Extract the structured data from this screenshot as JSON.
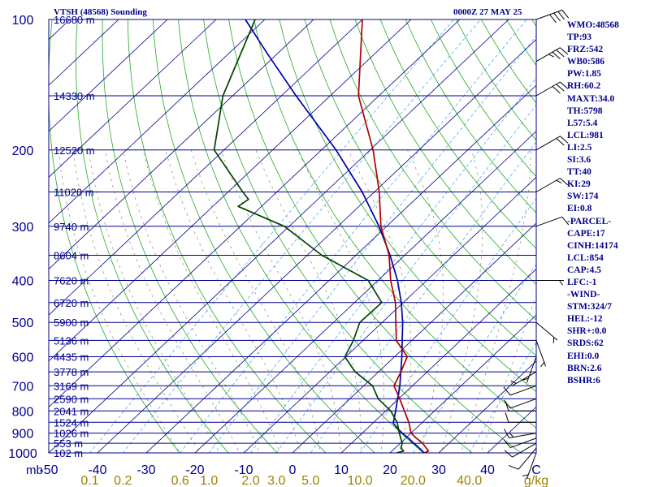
{
  "header": {
    "station": "VTSH (48568) Sounding",
    "valid_time": "0000Z 27 MAY 25"
  },
  "indices": [
    "WMO:48568",
    "TP:93",
    "FRZ:542",
    "WB0:586",
    "PW:1.85",
    "RH:60.2",
    "MAXT:34.0",
    "TH:5798",
    "L57:5.4",
    "LCL:981",
    "LI:2.5",
    "SI:3.6",
    "TT:40",
    "KI:29",
    "SW:174",
    "EI:0.8",
    "-PARCEL-",
    "CAPE:17",
    "CINH:14174",
    "LCL:854",
    "CAP:4.5",
    "LFC:-1",
    "-WIND-",
    "STM:324/7",
    "HEL:-12",
    "SHR+:0.0",
    "SRDS:62",
    "EHI:0.0",
    "BRN:2.6",
    "BSHR:6"
  ],
  "chart_data": {
    "type": "line",
    "subtype": "skew-T log-P sounding",
    "y_axis": {
      "unit_label": "mb",
      "scale": "log",
      "range": [
        1000,
        100
      ],
      "tick_labels": [
        "100",
        "200",
        "300",
        "400",
        "500",
        "600",
        "700",
        "800",
        "900",
        "1000"
      ]
    },
    "x_axis": {
      "range": [
        -50,
        50
      ],
      "tick_labels": [
        "-50",
        "-40",
        "-30",
        "-20",
        "-10",
        "0",
        "10",
        "20",
        "30",
        "40",
        "C"
      ]
    },
    "mixing_ratio_labels": {
      "unit": "g/kg",
      "values": [
        0.1,
        0.2,
        0.6,
        1.0,
        2.0,
        3.0,
        5.0,
        10.0,
        20.0,
        40.0
      ],
      "labels": [
        "0.1",
        "0.2",
        "0.6",
        "1.0",
        "2.0",
        "3.0",
        "5.0",
        "10.0",
        "20.0",
        "40.0"
      ]
    },
    "height_levels": [
      {
        "p": 100,
        "label": "16680 m"
      },
      {
        "p": 150,
        "label": "14330 m"
      },
      {
        "p": 200,
        "label": "12520 m"
      },
      {
        "p": 250,
        "label": "11020 m"
      },
      {
        "p": 300,
        "label": "9740 m"
      },
      {
        "p": 350,
        "label": "8604 m"
      },
      {
        "p": 400,
        "label": "7620 m"
      },
      {
        "p": 450,
        "label": "6720 m"
      },
      {
        "p": 500,
        "label": "5900 m"
      },
      {
        "p": 550,
        "label": "5136 m"
      },
      {
        "p": 600,
        "label": "4435 m"
      },
      {
        "p": 650,
        "label": "3778 m"
      },
      {
        "p": 700,
        "label": "3169 m"
      },
      {
        "p": 750,
        "label": "2590 m"
      },
      {
        "p": 800,
        "label": "2041 m"
      },
      {
        "p": 850,
        "label": "1524 m"
      },
      {
        "p": 900,
        "label": "1026 m"
      },
      {
        "p": 950,
        "label": "553 m"
      },
      {
        "p": 1000,
        "label": "102 m"
      }
    ],
    "temperature": [
      {
        "p": 1000,
        "t": 27.0
      },
      {
        "p": 990,
        "t": 27.5
      },
      {
        "p": 975,
        "t": 26.4
      },
      {
        "p": 950,
        "t": 24.6
      },
      {
        "p": 925,
        "t": 22.2
      },
      {
        "p": 900,
        "t": 20.0
      },
      {
        "p": 850,
        "t": 17.2
      },
      {
        "p": 800,
        "t": 13.8
      },
      {
        "p": 750,
        "t": 10.2
      },
      {
        "p": 700,
        "t": 6.2
      },
      {
        "p": 650,
        "t": 4.6
      },
      {
        "p": 600,
        "t": 2.6
      },
      {
        "p": 550,
        "t": -3.2
      },
      {
        "p": 500,
        "t": -7.2
      },
      {
        "p": 450,
        "t": -11.6
      },
      {
        "p": 400,
        "t": -17.4
      },
      {
        "p": 350,
        "t": -23.2
      },
      {
        "p": 300,
        "t": -31.2
      },
      {
        "p": 250,
        "t": -39.0
      },
      {
        "p": 200,
        "t": -49.4
      },
      {
        "p": 150,
        "t": -64.2
      },
      {
        "p": 100,
        "t": -80.0
      },
      {
        "p": 95,
        "t": -80.8
      }
    ],
    "dewpoint": [
      {
        "p": 1000,
        "t": 21.4
      },
      {
        "p": 990,
        "t": 22.4
      },
      {
        "p": 975,
        "t": 21.2
      },
      {
        "p": 950,
        "t": 20.4
      },
      {
        "p": 925,
        "t": 19.0
      },
      {
        "p": 900,
        "t": 17.6
      },
      {
        "p": 850,
        "t": 14.8
      },
      {
        "p": 800,
        "t": 11.0
      },
      {
        "p": 750,
        "t": 5.8
      },
      {
        "p": 700,
        "t": 1.8
      },
      {
        "p": 650,
        "t": -4.8
      },
      {
        "p": 600,
        "t": -10.2
      },
      {
        "p": 550,
        "t": -12.0
      },
      {
        "p": 500,
        "t": -14.6
      },
      {
        "p": 450,
        "t": -14.4
      },
      {
        "p": 400,
        "t": -22.0
      },
      {
        "p": 350,
        "t": -37.0
      },
      {
        "p": 300,
        "t": -51.0
      },
      {
        "p": 270,
        "t": -64.8
      },
      {
        "p": 260,
        "t": -64.2
      },
      {
        "p": 250,
        "t": -67.0
      },
      {
        "p": 200,
        "t": -82.0
      },
      {
        "p": 150,
        "t": -92.0
      },
      {
        "p": 100,
        "t": -102.0
      },
      {
        "p": 95,
        "t": -103.0
      }
    ],
    "parcel": [
      {
        "p": 1000,
        "t": 27.0
      },
      {
        "p": 975,
        "t": 25.0
      },
      {
        "p": 950,
        "t": 22.8
      },
      {
        "p": 925,
        "t": 20.6
      },
      {
        "p": 900,
        "t": 18.2
      },
      {
        "p": 880,
        "t": 16.4
      },
      {
        "p": 854,
        "t": 14.2
      },
      {
        "p": 800,
        "t": 12.0
      },
      {
        "p": 700,
        "t": 7.4
      },
      {
        "p": 600,
        "t": 1.5
      },
      {
        "p": 500,
        "t": -5.8
      },
      {
        "p": 450,
        "t": -10.4
      },
      {
        "p": 400,
        "t": -16.0
      },
      {
        "p": 350,
        "t": -23.0
      },
      {
        "p": 300,
        "t": -31.6
      },
      {
        "p": 250,
        "t": -42.5
      },
      {
        "p": 200,
        "t": -57.0
      },
      {
        "p": 150,
        "t": -77.0
      },
      {
        "p": 120,
        "t": -92.0
      },
      {
        "p": 100,
        "t": -104.0
      },
      {
        "p": 95,
        "t": -107.0
      }
    ],
    "wind_barbs": [
      {
        "p": 1000,
        "dir": 200,
        "spd": 5
      },
      {
        "p": 975,
        "dir": 220,
        "spd": 10
      },
      {
        "p": 950,
        "dir": 240,
        "spd": 10
      },
      {
        "p": 925,
        "dir": 250,
        "spd": 10
      },
      {
        "p": 900,
        "dir": 260,
        "spd": 15
      },
      {
        "p": 850,
        "dir": 270,
        "spd": 10
      },
      {
        "p": 800,
        "dir": 270,
        "spd": 10
      },
      {
        "p": 750,
        "dir": 250,
        "spd": 10
      },
      {
        "p": 700,
        "dir": 250,
        "spd": 10
      },
      {
        "p": 650,
        "dir": 240,
        "spd": 5
      },
      {
        "p": 600,
        "dir": 200,
        "spd": 5
      },
      {
        "p": 550,
        "dir": 160,
        "spd": 5
      },
      {
        "p": 500,
        "dir": 130,
        "spd": 5
      },
      {
        "p": 400,
        "dir": 90,
        "spd": 5
      },
      {
        "p": 300,
        "dir": 70,
        "spd": 10
      },
      {
        "p": 250,
        "dir": 60,
        "spd": 15
      },
      {
        "p": 200,
        "dir": 60,
        "spd": 20
      },
      {
        "p": 150,
        "dir": 60,
        "spd": 30
      },
      {
        "p": 125,
        "dir": 60,
        "spd": 35
      },
      {
        "p": 100,
        "dir": 70,
        "spd": 40
      }
    ],
    "colors": {
      "isobar": "#00008b",
      "isotherm": "#00008b",
      "dry_adiabat": "#22aa22",
      "moist_adiabat": "#9a9a7a",
      "mixing_ratio": "#55aaff",
      "temperature": "#b00000",
      "dewpoint": "#004400",
      "parcel": "#0000aa",
      "axis_text": "#00008b",
      "mixing_text": "#a08000",
      "barb": "#000000"
    }
  }
}
